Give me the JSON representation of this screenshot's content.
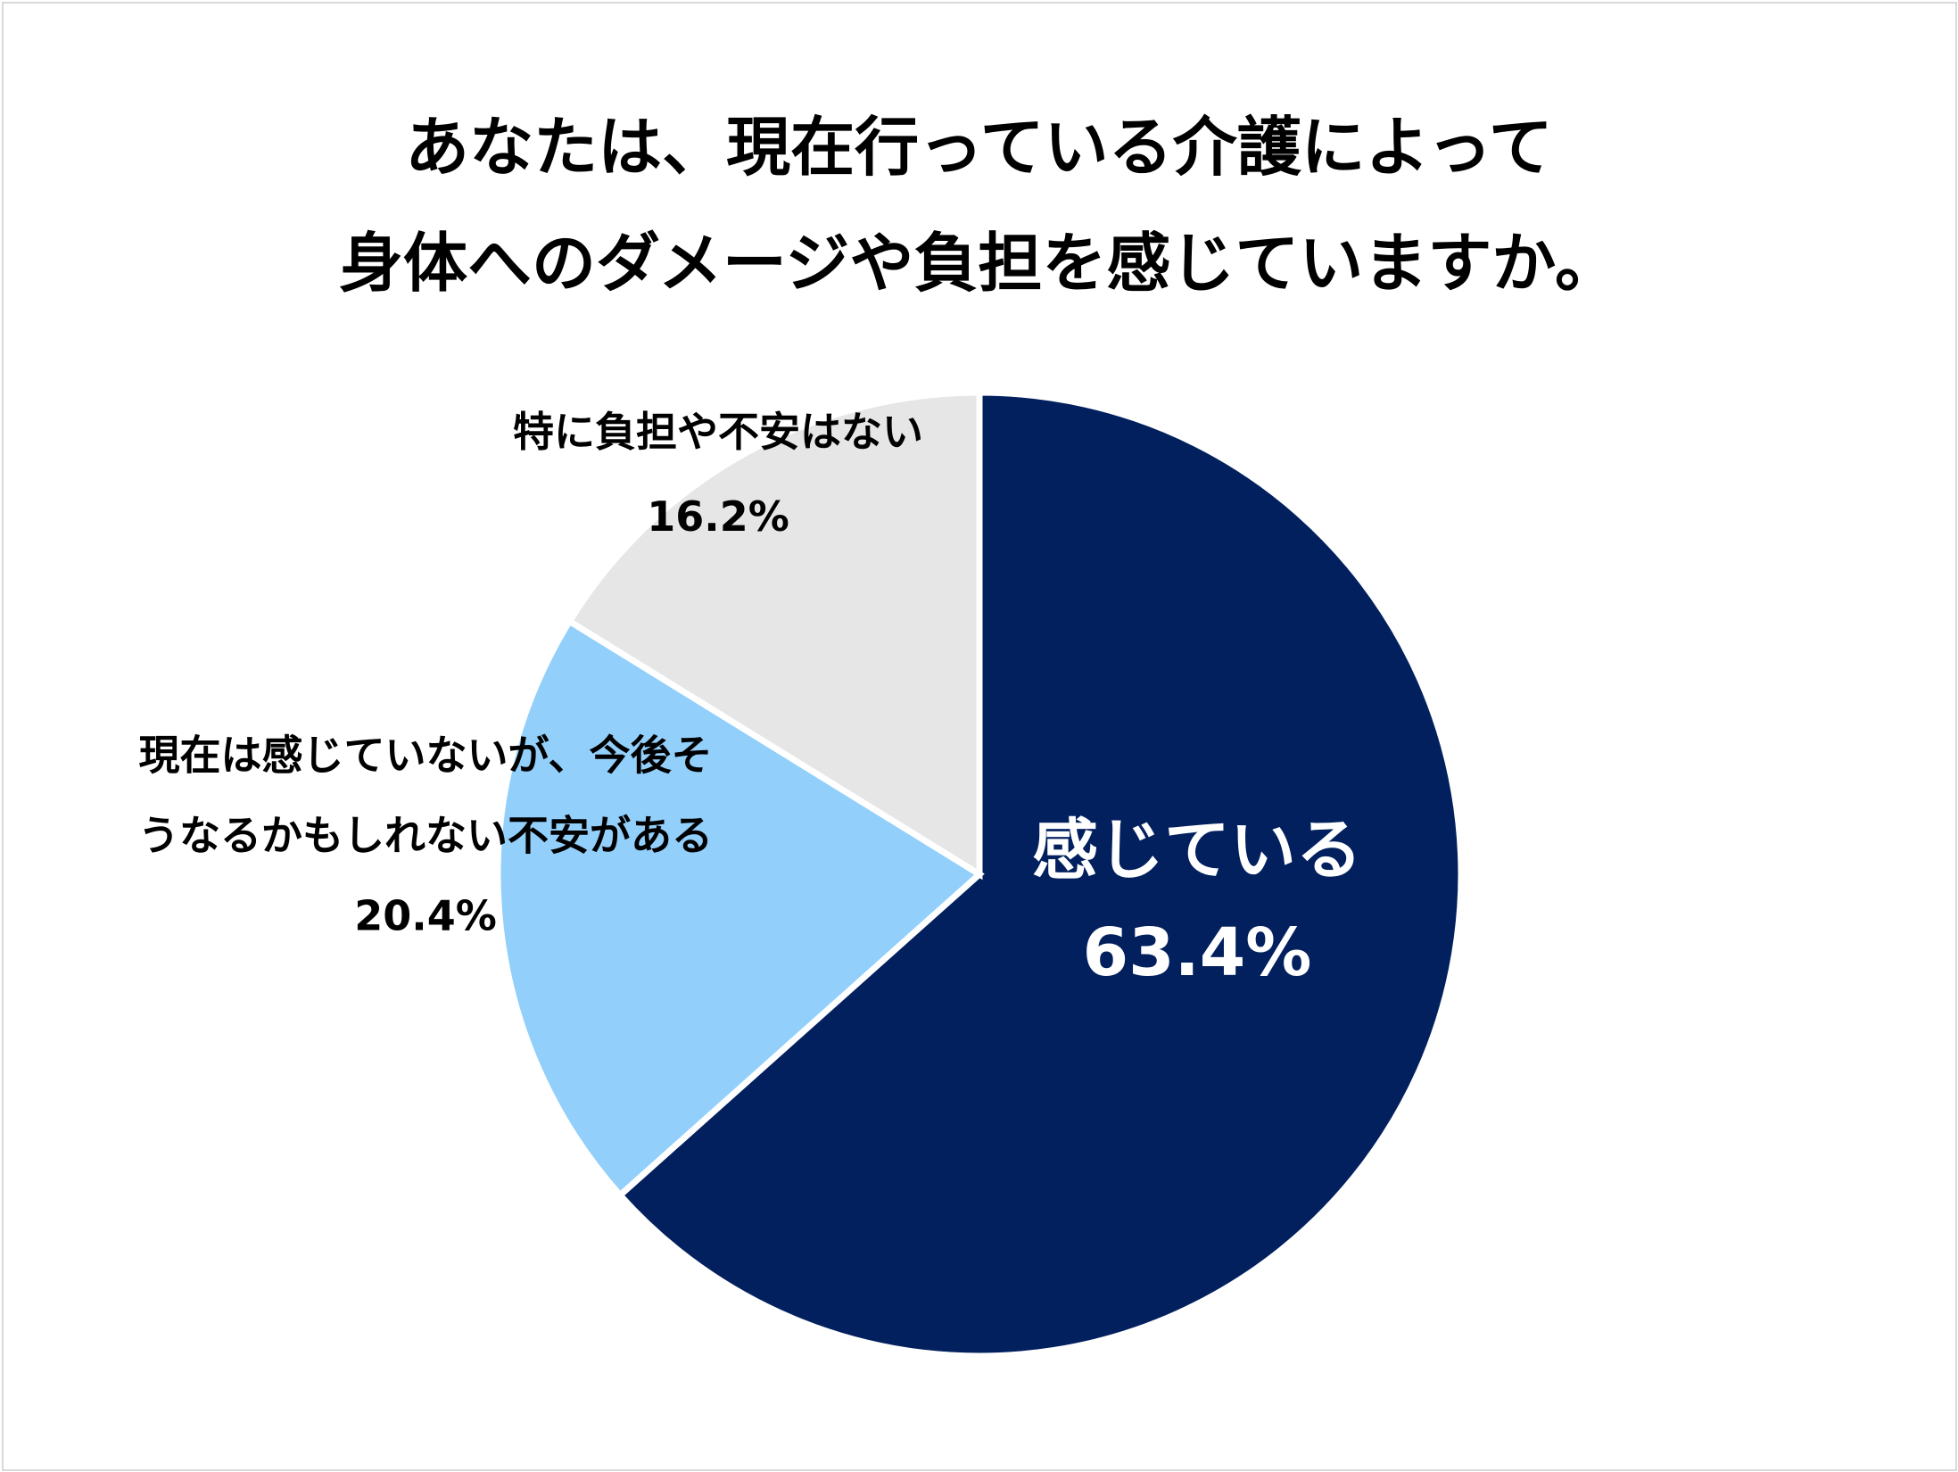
{
  "title": {
    "line1": "あなたは、現在行っている介護によって",
    "line2": "身体へのダメージや負担を感じていますか。"
  },
  "chart_data": {
    "type": "pie",
    "title": "あなたは、現在行っている介護によって身体へのダメージや負担を感じていますか。",
    "start_angle": "12 o'clock",
    "direction": "clockwise",
    "slices": [
      {
        "label_lines": [
          "感じている"
        ],
        "value": 63.4,
        "value_label": "63.4%",
        "color": "#02205e",
        "text_color": "#ffffff"
      },
      {
        "label_lines": [
          "現在は感じていないが、今後そ",
          "うなるかもしれない不安がある"
        ],
        "value": 20.4,
        "value_label": "20.4%",
        "color": "#92cffb",
        "text_color": "#000000"
      },
      {
        "label_lines": [
          "特に負担や不安はない"
        ],
        "value": 16.2,
        "value_label": "16.2%",
        "color": "#e6e6e6",
        "text_color": "#000000"
      }
    ]
  }
}
